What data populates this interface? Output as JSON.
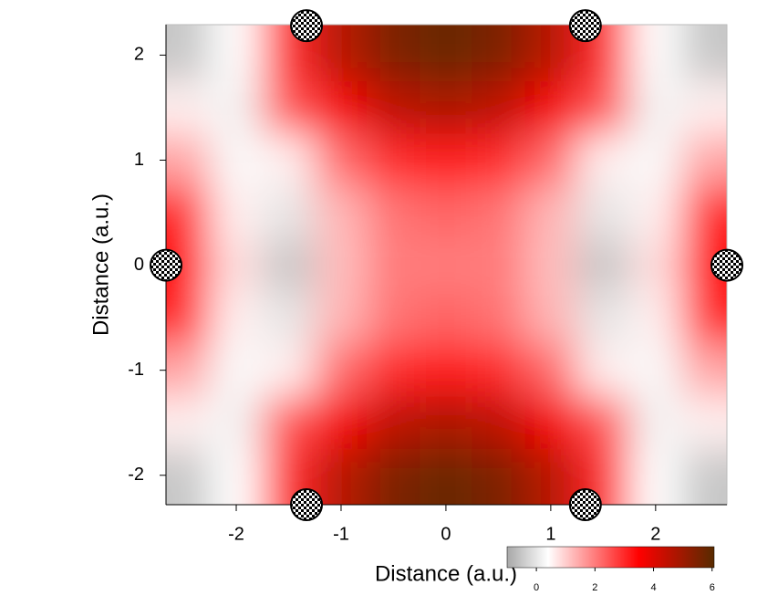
{
  "chart_data": {
    "type": "heatmap",
    "xlabel": "Distance (a.u.)",
    "ylabel": "Distance (a.u.)",
    "xlim": [
      -2.67,
      2.68
    ],
    "ylim": [
      -2.28,
      2.29
    ],
    "xticks": [
      -2,
      -1,
      0,
      1,
      2
    ],
    "yticks": [
      -2,
      -1,
      0,
      1,
      2
    ],
    "x": [
      -2.5,
      -2,
      -1.5,
      -1,
      -0.5,
      0,
      0.5,
      1,
      1.5,
      2,
      2.5
    ],
    "y": [
      2,
      1.5,
      1,
      0.5,
      0,
      -0.5,
      -1,
      -1.5,
      -2
    ],
    "z": [
      [
        -0.5,
        0.4,
        3,
        4.6,
        5.5,
        5.8,
        5.5,
        4.6,
        3,
        0.4,
        -0.5
      ],
      [
        0.6,
        0.2,
        2.5,
        3.6,
        4.5,
        4.8,
        4.5,
        3.6,
        2.5,
        0.2,
        0.6
      ],
      [
        1.5,
        0.3,
        0.6,
        2.2,
        3,
        3.2,
        3,
        2.2,
        0.6,
        0.3,
        1.5
      ],
      [
        3,
        0.6,
        0,
        1.3,
        2.1,
        2.3,
        2.1,
        1.3,
        0,
        0.6,
        3
      ],
      [
        3.5,
        0.8,
        -0.5,
        1.2,
        2,
        2,
        2,
        1.2,
        -0.5,
        0.8,
        3.5
      ],
      [
        3,
        0.6,
        0,
        1.3,
        2.1,
        2.3,
        2.1,
        1.3,
        0,
        0.6,
        3
      ],
      [
        1.5,
        0.3,
        0.6,
        2.2,
        3,
        3.2,
        3,
        2.2,
        0.6,
        0.3,
        1.5
      ],
      [
        0.6,
        0.2,
        2.5,
        3.6,
        4.5,
        4.8,
        4.5,
        3.6,
        2.5,
        0.2,
        0.6
      ],
      [
        -0.5,
        0.4,
        3,
        4.6,
        5.5,
        5.8,
        5.5,
        4.6,
        3,
        0.4,
        -0.5
      ]
    ],
    "colormap": [
      {
        "value": -1,
        "color": "#a8a8a8"
      },
      {
        "value": 0.4,
        "color": "#ffffff"
      },
      {
        "value": 3.5,
        "color": "#ff0000"
      },
      {
        "value": 6,
        "color": "#5c2a00"
      }
    ],
    "clim": [
      -1,
      6.07
    ],
    "cticks": [
      0,
      2,
      4,
      6
    ],
    "atoms": {
      "x": [
        -1.33,
        1.33,
        -2.67,
        2.68,
        -1.33,
        1.33
      ],
      "y": [
        2.28,
        2.28,
        0,
        0,
        -2.28,
        -2.28
      ]
    }
  }
}
